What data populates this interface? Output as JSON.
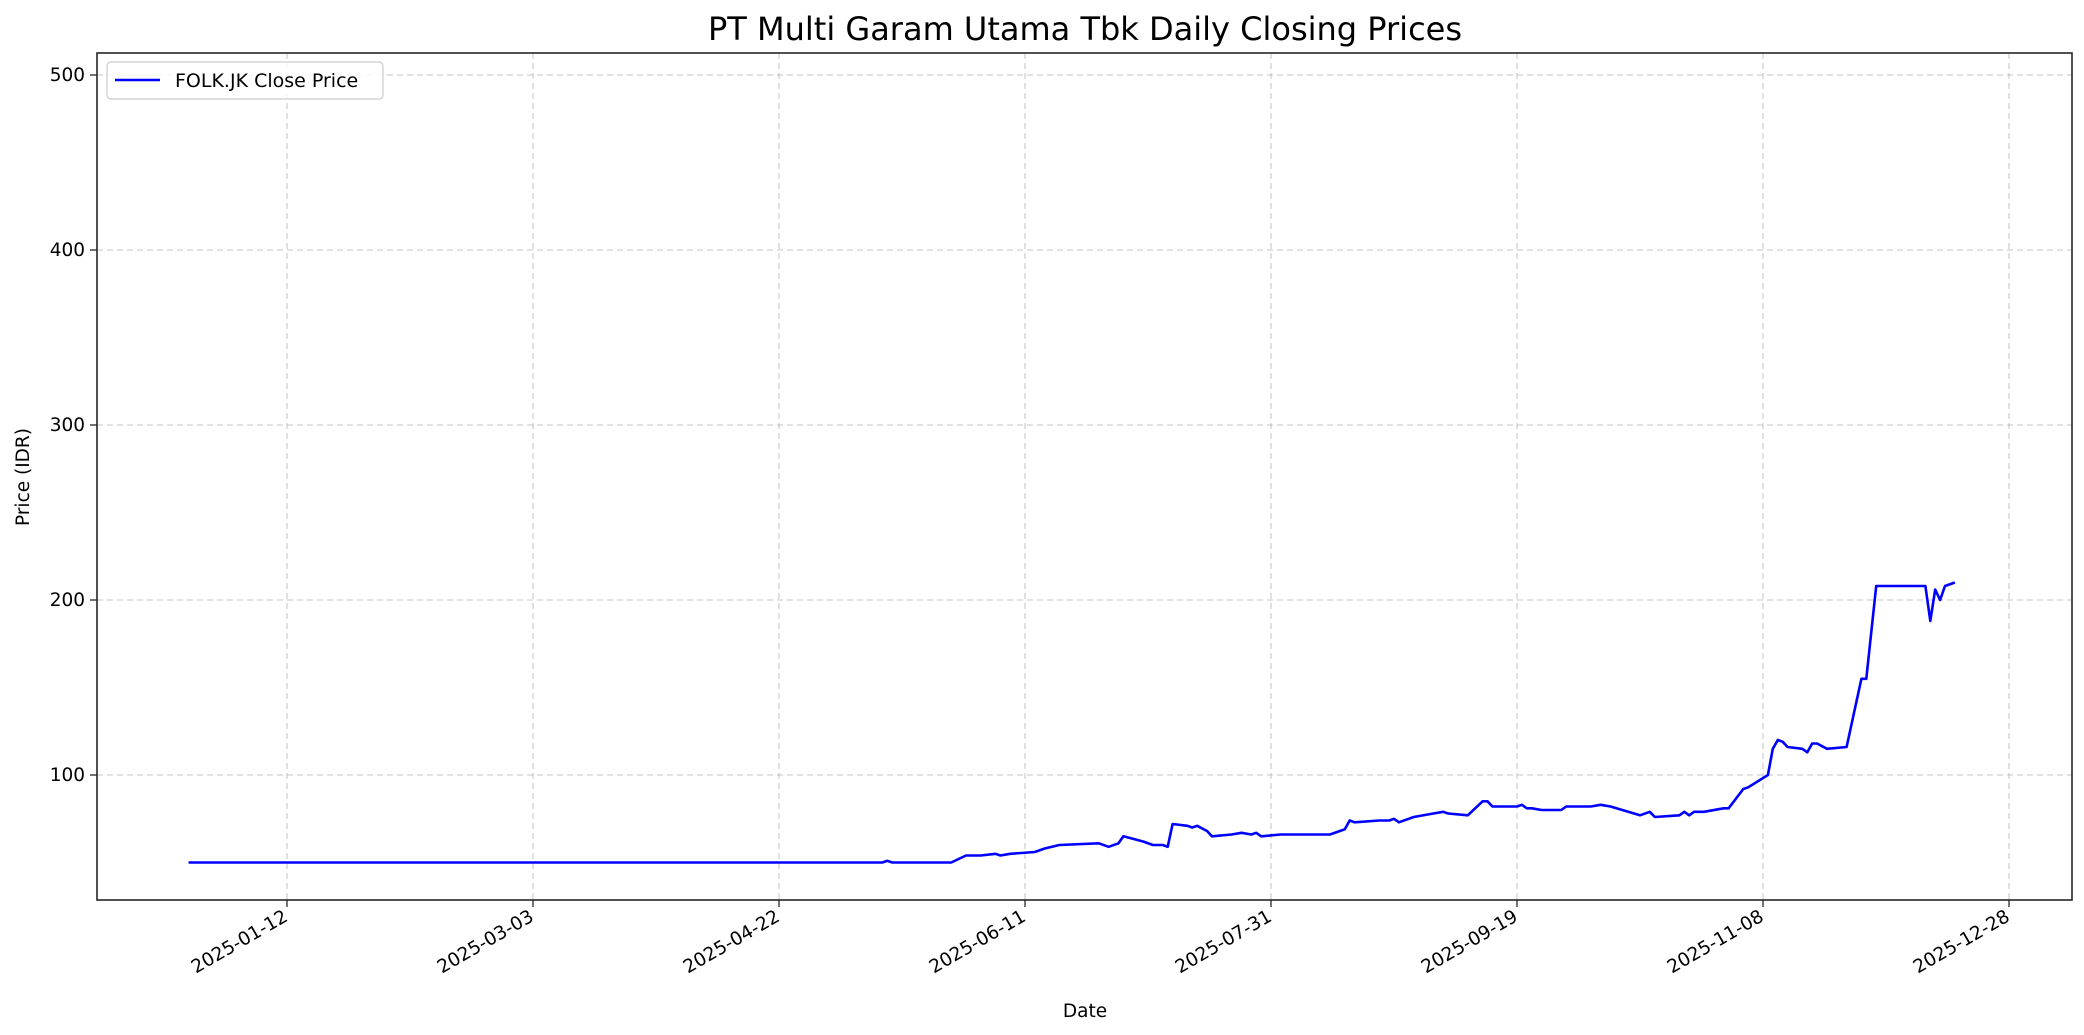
{
  "chart_data": {
    "type": "line",
    "title": "PT Multi Garam Utama Tbk Daily Closing Prices",
    "xlabel": "Date",
    "ylabel": "Price (IDR)",
    "ylim": [
      28,
      512
    ],
    "xlim": [
      "2024-12-14",
      "2026-01-05"
    ],
    "grid": true,
    "legend_position": "upper left",
    "yticks": [
      100,
      200,
      300,
      400,
      500
    ],
    "xticks": [
      "2025-01-12",
      "2025-03-03",
      "2025-04-22",
      "2025-06-11",
      "2025-07-31",
      "2025-09-19",
      "2025-11-08",
      "2025-12-28"
    ],
    "series": [
      {
        "name": "FOLK.JK Close Price",
        "color": "#0000ff",
        "points": [
          [
            "2024-12-23",
            50
          ],
          [
            "2025-05-13",
            50
          ],
          [
            "2025-05-14",
            51
          ],
          [
            "2025-05-15",
            50
          ],
          [
            "2025-05-27",
            50
          ],
          [
            "2025-05-30",
            54
          ],
          [
            "2025-06-02",
            54
          ],
          [
            "2025-06-05",
            55
          ],
          [
            "2025-06-06",
            54
          ],
          [
            "2025-06-08",
            55
          ],
          [
            "2025-06-13",
            56
          ],
          [
            "2025-06-15",
            58
          ],
          [
            "2025-06-18",
            60
          ],
          [
            "2025-06-26",
            61
          ],
          [
            "2025-06-28",
            59
          ],
          [
            "2025-06-30",
            61
          ],
          [
            "2025-07-01",
            65
          ],
          [
            "2025-07-05",
            62
          ],
          [
            "2025-07-07",
            60
          ],
          [
            "2025-07-09",
            60
          ],
          [
            "2025-07-10",
            59
          ],
          [
            "2025-07-11",
            72
          ],
          [
            "2025-07-14",
            71
          ],
          [
            "2025-07-15",
            70
          ],
          [
            "2025-07-16",
            71
          ],
          [
            "2025-07-18",
            68
          ],
          [
            "2025-07-19",
            65
          ],
          [
            "2025-07-23",
            66
          ],
          [
            "2025-07-25",
            67
          ],
          [
            "2025-07-27",
            66
          ],
          [
            "2025-07-28",
            67
          ],
          [
            "2025-07-29",
            65
          ],
          [
            "2025-08-02",
            66
          ],
          [
            "2025-08-12",
            66
          ],
          [
            "2025-08-14",
            68
          ],
          [
            "2025-08-15",
            69
          ],
          [
            "2025-08-16",
            74
          ],
          [
            "2025-08-17",
            73
          ],
          [
            "2025-08-22",
            74
          ],
          [
            "2025-08-24",
            74
          ],
          [
            "2025-08-25",
            75
          ],
          [
            "2025-08-26",
            73
          ],
          [
            "2025-08-29",
            76
          ],
          [
            "2025-09-02",
            78
          ],
          [
            "2025-09-04",
            79
          ],
          [
            "2025-09-05",
            78
          ],
          [
            "2025-09-09",
            77
          ],
          [
            "2025-09-12",
            85
          ],
          [
            "2025-09-13",
            85
          ],
          [
            "2025-09-14",
            82
          ],
          [
            "2025-09-19",
            82
          ],
          [
            "2025-09-20",
            83
          ],
          [
            "2025-09-21",
            81
          ],
          [
            "2025-09-22",
            81
          ],
          [
            "2025-09-24",
            80
          ],
          [
            "2025-09-28",
            80
          ],
          [
            "2025-09-29",
            82
          ],
          [
            "2025-10-04",
            82
          ],
          [
            "2025-10-06",
            83
          ],
          [
            "2025-10-08",
            82
          ],
          [
            "2025-10-14",
            77
          ],
          [
            "2025-10-16",
            79
          ],
          [
            "2025-10-17",
            76
          ],
          [
            "2025-10-22",
            77
          ],
          [
            "2025-10-23",
            79
          ],
          [
            "2025-10-24",
            77
          ],
          [
            "2025-10-25",
            79
          ],
          [
            "2025-10-27",
            79
          ],
          [
            "2025-10-31",
            81
          ],
          [
            "2025-11-01",
            81
          ],
          [
            "2025-11-04",
            92
          ],
          [
            "2025-11-05",
            93
          ],
          [
            "2025-11-09",
            100
          ],
          [
            "2025-11-10",
            115
          ],
          [
            "2025-11-11",
            120
          ],
          [
            "2025-11-12",
            119
          ],
          [
            "2025-11-13",
            116
          ],
          [
            "2025-11-16",
            115
          ],
          [
            "2025-11-17",
            113
          ],
          [
            "2025-11-18",
            118
          ],
          [
            "2025-11-19",
            118
          ],
          [
            "2025-11-21",
            115
          ],
          [
            "2025-11-25",
            116
          ],
          [
            "2025-11-28",
            155
          ],
          [
            "2025-11-29",
            155
          ],
          [
            "2025-12-01",
            208
          ],
          [
            "2025-12-11",
            208
          ],
          [
            "2025-12-12",
            188
          ],
          [
            "2025-12-13",
            206
          ],
          [
            "2025-12-14",
            200
          ],
          [
            "2025-12-15",
            208
          ],
          [
            "2025-12-17",
            210
          ]
        ]
      }
    ]
  },
  "legend": {
    "label": "FOLK.JK Close Price"
  }
}
